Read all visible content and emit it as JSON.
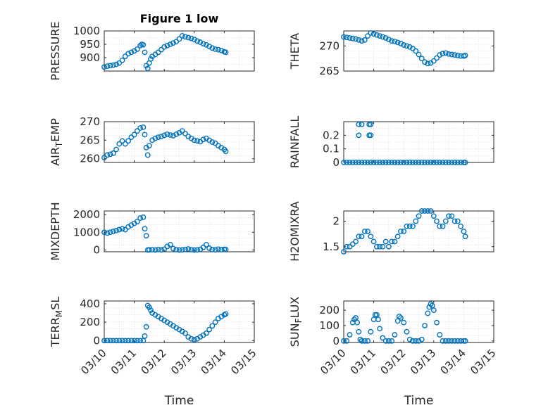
{
  "figure": {
    "title": "Figure 1 low"
  },
  "style": {
    "marker_color": "#0072BD",
    "axis_color": "#262626",
    "grid_color": "#d9d9d9"
  },
  "chart_data": [
    {
      "id": "pressure",
      "type": "scatter",
      "ylabel": "PRESSURE",
      "xlabel": "",
      "xlim": [
        0,
        5
      ],
      "ylim": [
        850,
        1000
      ],
      "yticks": [
        900,
        950,
        1000
      ],
      "grid": true,
      "x": [
        0.0,
        0.1,
        0.2,
        0.3,
        0.4,
        0.5,
        0.6,
        0.7,
        0.8,
        0.9,
        1.0,
        1.1,
        1.2,
        1.25,
        1.3,
        1.35,
        1.4,
        1.45,
        1.5,
        1.55,
        1.6,
        1.7,
        1.8,
        1.9,
        2.0,
        2.1,
        2.2,
        2.3,
        2.4,
        2.5,
        2.6,
        2.7,
        2.8,
        2.9,
        3.0,
        3.1,
        3.2,
        3.3,
        3.4,
        3.5,
        3.6,
        3.7,
        3.8,
        3.9,
        4.0,
        4.05
      ],
      "y": [
        865,
        868,
        870,
        872,
        875,
        880,
        890,
        905,
        915,
        920,
        925,
        932,
        945,
        950,
        948,
        920,
        870,
        860,
        880,
        895,
        905,
        912,
        920,
        930,
        940,
        945,
        950,
        955,
        960,
        970,
        982,
        978,
        975,
        972,
        968,
        962,
        958,
        952,
        948,
        942,
        936,
        932,
        930,
        927,
        922,
        920
      ]
    },
    {
      "id": "theta",
      "type": "scatter",
      "ylabel": "THETA",
      "xlabel": "",
      "xlim": [
        0,
        5
      ],
      "ylim": [
        265,
        273
      ],
      "yticks": [
        265,
        270
      ],
      "grid": true,
      "x": [
        0.0,
        0.1,
        0.2,
        0.3,
        0.4,
        0.5,
        0.6,
        0.7,
        0.8,
        0.9,
        1.0,
        1.1,
        1.2,
        1.3,
        1.4,
        1.5,
        1.6,
        1.7,
        1.8,
        1.9,
        2.0,
        2.1,
        2.2,
        2.3,
        2.4,
        2.5,
        2.6,
        2.7,
        2.8,
        2.9,
        3.0,
        3.1,
        3.2,
        3.3,
        3.4,
        3.5,
        3.6,
        3.7,
        3.8,
        3.9,
        4.0,
        4.05
      ],
      "y": [
        271.8,
        271.7,
        271.6,
        271.5,
        271.4,
        271.2,
        271.0,
        271.2,
        272.0,
        272.6,
        272.4,
        272.2,
        272.0,
        271.8,
        271.6,
        271.3,
        271.0,
        270.9,
        270.7,
        270.5,
        270.2,
        270.0,
        269.8,
        269.5,
        269.0,
        268.3,
        267.5,
        266.8,
        266.5,
        266.6,
        267.0,
        267.6,
        268.2,
        268.5,
        268.6,
        268.4,
        268.3,
        268.2,
        268.1,
        268.0,
        268.0,
        268.1
      ]
    },
    {
      "id": "air_temp",
      "type": "scatter",
      "ylabel": "AIR_TEMP",
      "xlabel": "",
      "xlim": [
        0,
        5
      ],
      "ylim": [
        259,
        270
      ],
      "yticks": [
        260,
        265,
        270
      ],
      "grid": true,
      "x": [
        0.0,
        0.1,
        0.2,
        0.3,
        0.4,
        0.5,
        0.6,
        0.7,
        0.8,
        0.9,
        1.0,
        1.1,
        1.2,
        1.3,
        1.35,
        1.4,
        1.45,
        1.5,
        1.6,
        1.7,
        1.8,
        1.9,
        2.0,
        2.1,
        2.2,
        2.3,
        2.4,
        2.5,
        2.6,
        2.7,
        2.8,
        2.9,
        3.0,
        3.1,
        3.2,
        3.3,
        3.4,
        3.5,
        3.6,
        3.7,
        3.8,
        3.9,
        4.0,
        4.05
      ],
      "y": [
        260.3,
        261.0,
        261.2,
        261.5,
        262.5,
        264.0,
        264.8,
        264.0,
        264.8,
        265.8,
        266.5,
        267.5,
        268.3,
        268.5,
        266.5,
        263.0,
        261.0,
        263.5,
        265.0,
        265.5,
        265.8,
        266.0,
        266.3,
        266.6,
        266.4,
        266.2,
        266.6,
        267.0,
        267.5,
        266.8,
        266.0,
        265.5,
        265.0,
        264.8,
        264.6,
        265.2,
        265.5,
        265.0,
        264.5,
        264.2,
        263.5,
        263.0,
        262.5,
        262.0
      ]
    },
    {
      "id": "rainfall",
      "type": "scatter",
      "ylabel": "RAINFALL",
      "xlabel": "",
      "xlim": [
        0,
        5
      ],
      "ylim": [
        0,
        0.3
      ],
      "yticks": [
        0,
        0.1,
        0.2
      ],
      "grid": true,
      "x": [
        0.0,
        0.1,
        0.2,
        0.3,
        0.4,
        0.5,
        0.6,
        0.7,
        0.8,
        0.9,
        1.0,
        1.1,
        1.2,
        1.3,
        1.4,
        1.5,
        1.6,
        1.7,
        1.8,
        1.9,
        2.0,
        2.1,
        2.2,
        2.3,
        2.4,
        2.5,
        2.6,
        2.7,
        2.8,
        2.9,
        3.0,
        3.1,
        3.2,
        3.3,
        3.4,
        3.5,
        3.6,
        3.7,
        3.8,
        3.9,
        4.0,
        4.05,
        0.5,
        0.5,
        0.6,
        0.85,
        0.85,
        0.9,
        0.9
      ],
      "y": [
        0,
        0,
        0,
        0,
        0,
        0,
        0,
        0,
        0,
        0,
        0,
        0,
        0,
        0,
        0,
        0,
        0,
        0,
        0,
        0,
        0,
        0,
        0,
        0,
        0,
        0,
        0,
        0,
        0,
        0,
        0,
        0,
        0,
        0,
        0,
        0,
        0,
        0,
        0,
        0,
        0,
        0,
        0.2,
        0.28,
        0.28,
        0.2,
        0.28,
        0.2,
        0.28
      ]
    },
    {
      "id": "mixdepth",
      "type": "scatter",
      "ylabel": "MIXDEPTH",
      "xlabel": "",
      "xlim": [
        0,
        5
      ],
      "ylim": [
        -100,
        2200
      ],
      "yticks": [
        0,
        1000,
        2000
      ],
      "grid": true,
      "x": [
        0.0,
        0.1,
        0.2,
        0.3,
        0.4,
        0.5,
        0.6,
        0.7,
        0.8,
        0.9,
        1.0,
        1.1,
        1.2,
        1.3,
        1.35,
        1.4,
        1.45,
        1.5,
        1.6,
        1.7,
        1.8,
        1.9,
        2.0,
        2.1,
        2.2,
        2.3,
        2.4,
        2.5,
        2.6,
        2.7,
        2.8,
        2.9,
        3.0,
        3.1,
        3.2,
        3.3,
        3.4,
        3.5,
        3.6,
        3.7,
        3.8,
        3.9,
        4.0,
        4.05
      ],
      "y": [
        1000,
        950,
        1000,
        1050,
        1100,
        1150,
        1200,
        1150,
        1300,
        1400,
        1500,
        1600,
        1800,
        1850,
        1200,
        800,
        0,
        10,
        20,
        0,
        30,
        10,
        50,
        200,
        300,
        80,
        20,
        0,
        10,
        30,
        60,
        20,
        0,
        10,
        40,
        150,
        300,
        100,
        30,
        10,
        50,
        20,
        40,
        30
      ]
    },
    {
      "id": "h2omixra",
      "type": "scatter",
      "ylabel": "H2OMIXRA",
      "xlabel": "",
      "xlim": [
        0,
        5
      ],
      "ylim": [
        1.4,
        2.2
      ],
      "yticks": [
        1.5,
        2
      ],
      "grid": true,
      "x": [
        0.0,
        0.1,
        0.2,
        0.3,
        0.4,
        0.5,
        0.6,
        0.7,
        0.8,
        0.9,
        1.0,
        1.1,
        1.2,
        1.3,
        1.4,
        1.5,
        1.6,
        1.7,
        1.8,
        1.9,
        2.0,
        2.1,
        2.2,
        2.3,
        2.4,
        2.5,
        2.6,
        2.7,
        2.8,
        2.9,
        3.0,
        3.1,
        3.2,
        3.3,
        3.4,
        3.5,
        3.6,
        3.7,
        3.8,
        3.9,
        4.0,
        4.05
      ],
      "y": [
        1.4,
        1.5,
        1.5,
        1.55,
        1.6,
        1.7,
        1.7,
        1.8,
        1.8,
        1.7,
        1.6,
        1.5,
        1.5,
        1.5,
        1.6,
        1.5,
        1.6,
        1.6,
        1.7,
        1.8,
        1.8,
        1.9,
        1.9,
        1.9,
        2.0,
        2.1,
        2.2,
        2.2,
        2.2,
        2.2,
        2.1,
        2.0,
        1.9,
        1.9,
        2.0,
        2.1,
        2.1,
        2.0,
        2.0,
        1.9,
        1.8,
        1.7
      ]
    },
    {
      "id": "terr_msl",
      "type": "scatter",
      "ylabel": "TERR_MSL",
      "xlabel": "Time",
      "xlim": [
        0,
        5
      ],
      "ylim": [
        -20,
        430
      ],
      "yticks": [
        0,
        200,
        400
      ],
      "grid": true,
      "xticks": [
        0,
        1,
        2,
        3,
        4,
        5
      ],
      "xticklabels": [
        "03/10",
        "03/11",
        "03/12",
        "03/13",
        "03/14",
        "03/15"
      ],
      "x": [
        0.0,
        0.1,
        0.2,
        0.3,
        0.4,
        0.5,
        0.6,
        0.7,
        0.8,
        0.9,
        1.0,
        1.1,
        1.2,
        1.3,
        1.35,
        1.4,
        1.45,
        1.5,
        1.55,
        1.6,
        1.7,
        1.8,
        1.9,
        2.0,
        2.1,
        2.2,
        2.3,
        2.4,
        2.5,
        2.6,
        2.7,
        2.8,
        2.9,
        3.0,
        3.1,
        3.2,
        3.3,
        3.4,
        3.5,
        3.6,
        3.7,
        3.8,
        3.9,
        4.0,
        4.05
      ],
      "y": [
        0,
        0,
        0,
        0,
        0,
        0,
        0,
        0,
        0,
        0,
        0,
        0,
        0,
        0,
        50,
        150,
        380,
        360,
        330,
        300,
        280,
        260,
        240,
        220,
        200,
        180,
        160,
        140,
        120,
        100,
        80,
        40,
        20,
        10,
        20,
        40,
        60,
        80,
        120,
        160,
        200,
        240,
        260,
        280,
        290
      ]
    },
    {
      "id": "sun_flux",
      "type": "scatter",
      "ylabel": "SUN_FLUX",
      "xlabel": "Time",
      "xlim": [
        0,
        5
      ],
      "ylim": [
        -10,
        260
      ],
      "yticks": [
        0,
        100,
        200
      ],
      "grid": true,
      "xticks": [
        0,
        1,
        2,
        3,
        4,
        5
      ],
      "xticklabels": [
        "03/10",
        "03/11",
        "03/12",
        "03/13",
        "03/14",
        "03/15"
      ],
      "x": [
        0.0,
        0.1,
        0.2,
        0.3,
        0.35,
        0.4,
        0.45,
        0.5,
        0.55,
        0.6,
        0.7,
        0.8,
        0.9,
        1.0,
        1.05,
        1.1,
        1.15,
        1.2,
        1.3,
        1.4,
        1.5,
        1.6,
        1.7,
        1.8,
        1.85,
        1.9,
        2.0,
        2.1,
        2.2,
        2.3,
        2.4,
        2.5,
        2.6,
        2.7,
        2.8,
        2.85,
        2.9,
        2.95,
        3.0,
        3.1,
        3.2,
        3.3,
        3.4,
        3.5,
        3.6,
        3.7,
        3.8,
        3.9,
        4.0,
        4.05
      ],
      "y": [
        0,
        0,
        40,
        120,
        140,
        150,
        120,
        60,
        10,
        0,
        0,
        0,
        60,
        140,
        170,
        170,
        140,
        80,
        20,
        0,
        0,
        0,
        40,
        130,
        160,
        150,
        120,
        60,
        10,
        0,
        0,
        0,
        10,
        100,
        180,
        220,
        240,
        230,
        200,
        120,
        40,
        0,
        0,
        0,
        0,
        0,
        0,
        0,
        0,
        0
      ]
    }
  ]
}
